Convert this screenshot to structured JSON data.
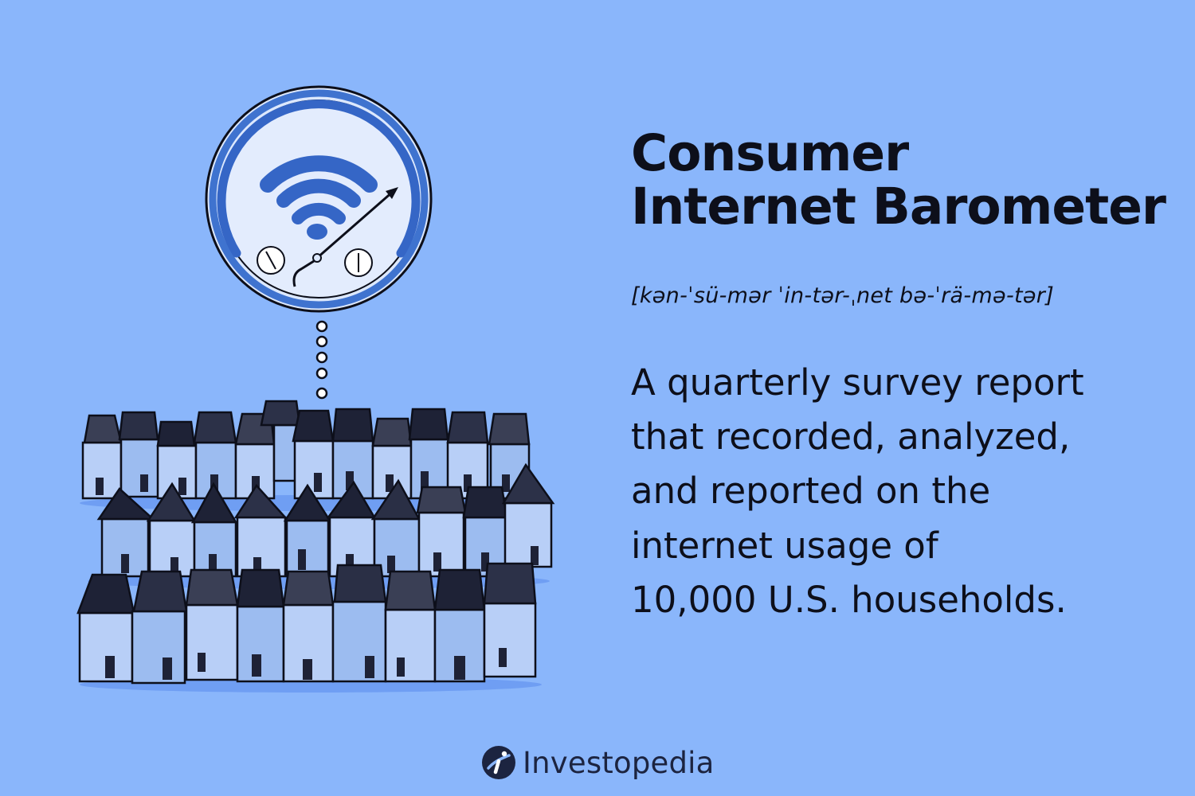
{
  "title": {
    "line1": "Consumer",
    "line2": "Internet Barometer"
  },
  "pronunciation": "[kən-ˈsü-mər ˈin-tər-ˌnet bə-ˈrä-mə-tər]",
  "definition": {
    "line1": "A quarterly survey report",
    "line2": "that recorded, analyzed,",
    "line3": "and reported on the",
    "line4": "internet usage of",
    "line5": "10,000 U.S. households."
  },
  "brand": {
    "name": "Investopedia",
    "logo_icon": "investopedia-logo-icon"
  },
  "illustration": {
    "subject_icons": [
      "wifi-icon",
      "gauge-needle-icon",
      "house-icon"
    ]
  },
  "colors": {
    "background": "#8ab6fb",
    "bubble_fill": "#dce8fd",
    "bubble_ring": "#3f73cf",
    "wifi": "#3566c6",
    "ink": "#0d0f1a",
    "house_light": "#b8cff7",
    "house_mid": "#9cbcf0"
  }
}
